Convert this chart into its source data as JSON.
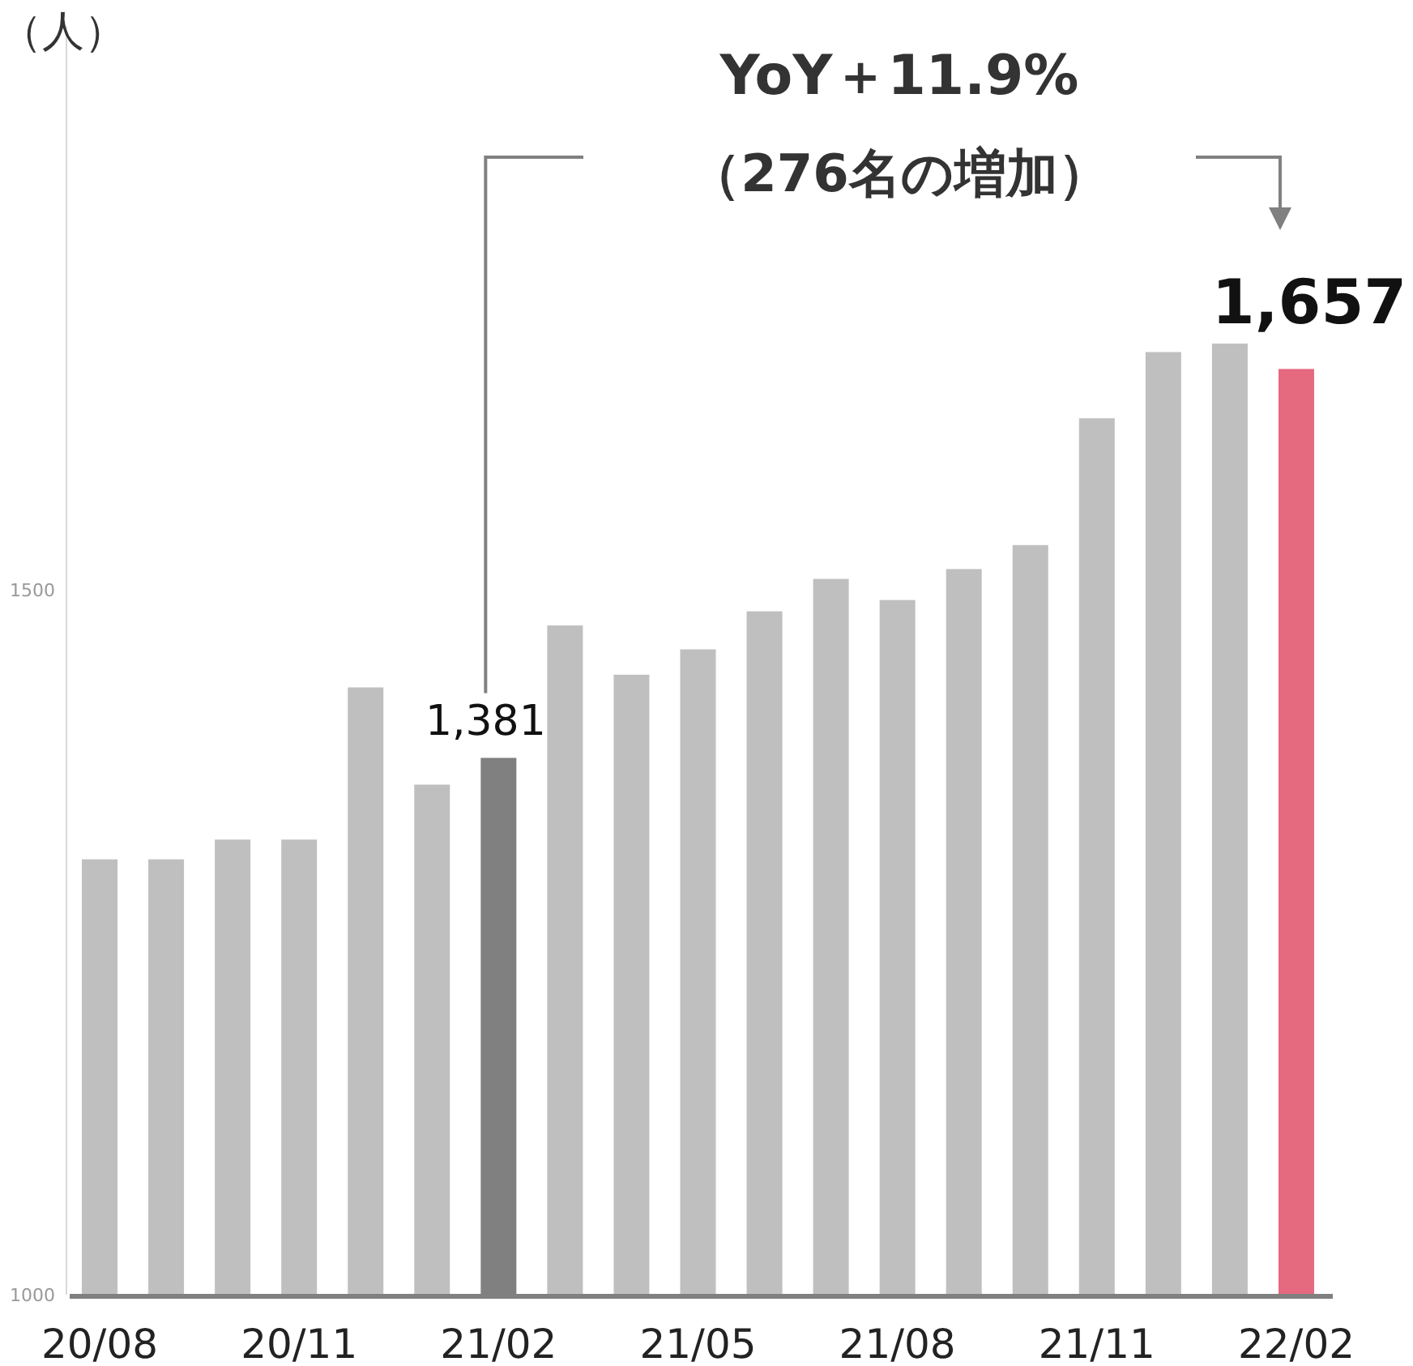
{
  "chart_data": {
    "type": "bar",
    "annotations": [
      "（人）",
      "YoY＋11.9%",
      "（276名の増加）"
    ],
    "categories": [
      "20/08",
      null,
      null,
      "20/11",
      null,
      null,
      "21/02",
      null,
      null,
      "21/05",
      null,
      null,
      "21/08",
      null,
      null,
      "21/11",
      null,
      null,
      "22/02"
    ],
    "values": [
      1309,
      1309,
      1323,
      1323,
      1431,
      1362,
      1381,
      1475,
      1440,
      1458,
      1485,
      1508,
      1493,
      1515,
      1532,
      1622,
      1669,
      1675,
      1657
    ],
    "colors": [
      "#bfbfbf",
      "#bfbfbf",
      "#bfbfbf",
      "#bfbfbf",
      "#bfbfbf",
      "#bfbfbf",
      "#808080",
      "#bfbfbf",
      "#bfbfbf",
      "#bfbfbf",
      "#bfbfbf",
      "#bfbfbf",
      "#bfbfbf",
      "#bfbfbf",
      "#bfbfbf",
      "#bfbfbf",
      "#bfbfbf",
      "#bfbfbf",
      "#e5697f"
    ],
    "value_labels": [
      null,
      null,
      null,
      null,
      null,
      null,
      "1,381",
      null,
      null,
      null,
      null,
      null,
      null,
      null,
      null,
      null,
      null,
      null,
      "1,657"
    ],
    "ylim": [
      1000,
      1900
    ],
    "yticks": [
      1000,
      1500
    ]
  }
}
